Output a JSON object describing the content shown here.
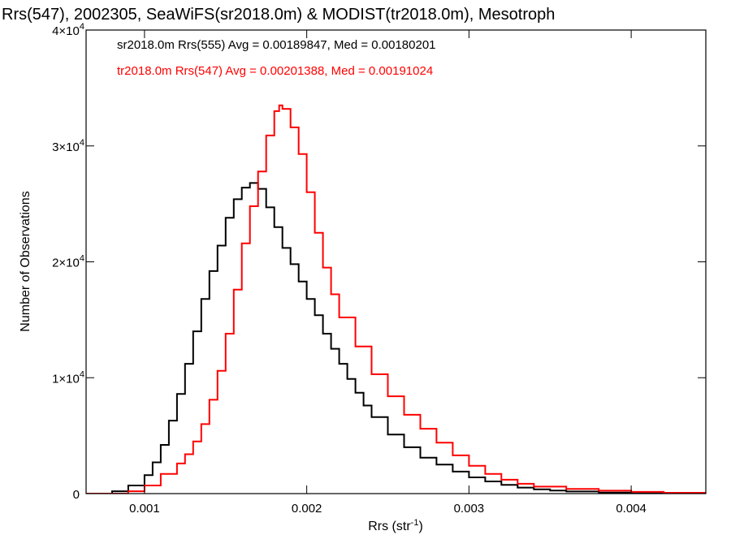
{
  "chart_data": {
    "type": "line",
    "title": "Rrs(547), 2002305, SeaWiFS(sr2018.0m) & MODIST(tr2018.0m), Mesotroph",
    "xlabel": "Rrs (str",
    "xlabel_sup": "-1",
    "xlabel_close": ")",
    "ylabel": "Number of Observations",
    "xlim": [
      0.00064,
      0.00446
    ],
    "ylim": [
      0,
      40000
    ],
    "x_ticks": [
      {
        "value": 0.001,
        "label": "0.001"
      },
      {
        "value": 0.002,
        "label": "0.002"
      },
      {
        "value": 0.003,
        "label": "0.003"
      },
      {
        "value": 0.004,
        "label": "0.004"
      }
    ],
    "y_ticks": [
      {
        "value": 0,
        "base": "0",
        "exp": ""
      },
      {
        "value": 10000,
        "base": "1×10",
        "exp": "4"
      },
      {
        "value": 20000,
        "base": "2×10",
        "exp": "4"
      },
      {
        "value": 30000,
        "base": "3×10",
        "exp": "4"
      },
      {
        "value": 40000,
        "base": "4×10",
        "exp": "4"
      }
    ],
    "grid": false,
    "legend_position": "top-left",
    "series": [
      {
        "name": "sr2018.0m Rrs(555) Avg = 0.00189847, Med = 0.00180201",
        "color": "#000000",
        "x": [
          0.00064,
          0.0008,
          0.0009,
          0.001,
          0.00105,
          0.0011,
          0.00115,
          0.0012,
          0.00125,
          0.0013,
          0.00135,
          0.0014,
          0.00145,
          0.0015,
          0.00155,
          0.0016,
          0.00165,
          0.0017,
          0.00175,
          0.0018,
          0.00185,
          0.0019,
          0.00195,
          0.002,
          0.00205,
          0.0021,
          0.00215,
          0.0022,
          0.00225,
          0.0023,
          0.00235,
          0.0024,
          0.0025,
          0.0026,
          0.0027,
          0.0028,
          0.0029,
          0.003,
          0.0031,
          0.0032,
          0.0033,
          0.0034,
          0.0035,
          0.0036,
          0.0038,
          0.004,
          0.0042,
          0.00446
        ],
        "y": [
          0,
          200,
          700,
          1600,
          2700,
          4200,
          6300,
          8600,
          11200,
          14000,
          16800,
          19200,
          21400,
          23800,
          25400,
          26400,
          26800,
          26300,
          24700,
          23000,
          21200,
          19800,
          18300,
          16800,
          15400,
          13800,
          12500,
          11200,
          9900,
          8700,
          7600,
          6600,
          5100,
          4000,
          3100,
          2500,
          1900,
          1400,
          1050,
          750,
          520,
          370,
          260,
          180,
          90,
          40,
          20,
          0
        ]
      },
      {
        "name": "tr2018.0m Rrs(547) Avg = 0.00201388, Med = 0.00191024",
        "color": "#ff0000",
        "x": [
          0.00064,
          0.0009,
          0.001,
          0.0011,
          0.0012,
          0.00125,
          0.0013,
          0.00135,
          0.0014,
          0.00145,
          0.0015,
          0.00155,
          0.0016,
          0.00165,
          0.0017,
          0.00175,
          0.0018,
          0.00183,
          0.00185,
          0.0019,
          0.00195,
          0.002,
          0.00205,
          0.0021,
          0.00215,
          0.0022,
          0.0023,
          0.0024,
          0.0025,
          0.0026,
          0.0027,
          0.0028,
          0.0029,
          0.003,
          0.0031,
          0.0032,
          0.0033,
          0.0034,
          0.0036,
          0.0038,
          0.004,
          0.0042,
          0.00446
        ],
        "y": [
          0,
          200,
          700,
          1700,
          2600,
          3400,
          4500,
          6000,
          8100,
          10600,
          13800,
          17600,
          21600,
          24800,
          27800,
          30900,
          33000,
          33500,
          33200,
          31600,
          29300,
          26000,
          22500,
          19500,
          17200,
          15200,
          12700,
          10300,
          8400,
          6800,
          5600,
          4400,
          3300,
          2400,
          1700,
          1200,
          850,
          600,
          400,
          250,
          150,
          70,
          0
        ]
      }
    ]
  }
}
